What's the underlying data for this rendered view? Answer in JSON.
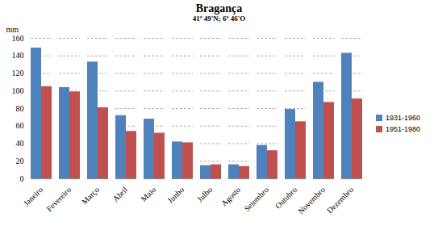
{
  "chart_data": {
    "type": "bar",
    "title": "Bragança",
    "subtitle": "41º 49'N; 6º 46'O",
    "y_label": "mm",
    "categories": [
      "Janeiro",
      "Fevereiro",
      "Março",
      "Abril",
      "Maio",
      "Junho",
      "Julho",
      "Agosto",
      "Setembro",
      "Outubro",
      "Novembro",
      "Dezembro"
    ],
    "series": [
      {
        "name": "1931-1960",
        "color": "#4f81bd",
        "values": [
          149,
          104,
          133,
          72,
          68,
          42,
          15,
          16,
          38,
          79,
          110,
          143
        ]
      },
      {
        "name": "1951-1980",
        "color": "#c0504d",
        "values": [
          105,
          99,
          81,
          54,
          52,
          41,
          16,
          14,
          32,
          65,
          87,
          91
        ]
      }
    ],
    "ylim": [
      0,
      160
    ],
    "yticks": [
      0,
      20,
      40,
      60,
      80,
      100,
      120,
      140,
      160
    ],
    "grid": true,
    "legend": "right"
  }
}
